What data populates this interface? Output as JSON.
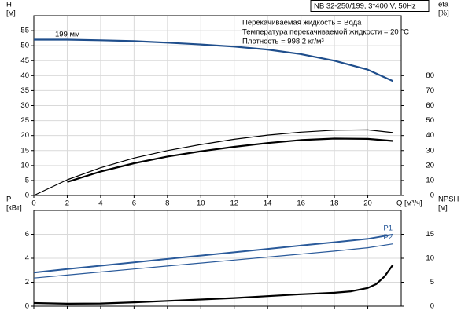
{
  "chart_data": [
    {
      "type": "line",
      "title": "NB 32-250/199, 3*400 V, 50Hz",
      "annotations": [
        "Перекачиваемая жидкость = Вода",
        "Температура перекачиваемой жидкости = 20 °C",
        "Плотность = 998.2 кг/м³",
        "199 мм"
      ],
      "ylabel": "H",
      "yunit": "[м]",
      "y2label": "eta",
      "y2unit": "[%]",
      "xlabel": "Q [м³/ч]",
      "xlim": [
        0,
        22
      ],
      "xticks": [
        0,
        2,
        4,
        6,
        8,
        10,
        12,
        14,
        16,
        18,
        20
      ],
      "xtick_labels": true,
      "ylim": [
        0,
        60
      ],
      "yticks": [
        0,
        5,
        10,
        15,
        20,
        25,
        30,
        35,
        40,
        45,
        50,
        55
      ],
      "y2lim": [
        0,
        120
      ],
      "y2ticks": [
        0,
        10,
        20,
        30,
        40,
        50,
        60,
        70,
        80
      ],
      "grid": true,
      "series": [
        {
          "color": "#1f4e8c",
          "width": 2.2,
          "axis": "y",
          "x": [
            0,
            2,
            4,
            6,
            8,
            10,
            12,
            14,
            16,
            18,
            20,
            21.5
          ],
          "values": [
            52,
            52,
            51.8,
            51.5,
            51,
            50.4,
            49.7,
            48.7,
            47.2,
            45,
            42,
            38.2
          ]
        },
        {
          "color": "#000000",
          "width": 1.2,
          "axis": "y2",
          "x": [
            0,
            2,
            4,
            6,
            8,
            10,
            12,
            14,
            16,
            18,
            20,
            21.5
          ],
          "values": [
            0,
            10.5,
            18.5,
            25,
            30,
            34,
            37.5,
            40.3,
            42.3,
            43.6,
            43.8,
            42
          ]
        },
        {
          "color": "#000000",
          "width": 2.2,
          "axis": "y2",
          "x": [
            2,
            4,
            6,
            8,
            10,
            12,
            14,
            16,
            18,
            20,
            21.5
          ],
          "values": [
            9,
            16,
            21.5,
            26,
            29.5,
            32.5,
            35,
            37,
            38,
            37.8,
            36.4
          ]
        }
      ]
    },
    {
      "type": "line",
      "ylabel": "P",
      "yunit": "[кВт]",
      "y2label": "NPSH",
      "y2unit": "[м]",
      "xlim": [
        0,
        22
      ],
      "xticks": [
        0,
        2,
        4,
        6,
        8,
        10,
        12,
        14,
        16,
        18,
        20
      ],
      "xtick_labels": false,
      "ylim": [
        0,
        8
      ],
      "yticks": [
        0,
        2,
        4,
        6
      ],
      "y2lim": [
        0,
        20
      ],
      "y2ticks": [
        0,
        5,
        10,
        15
      ],
      "grid": true,
      "series": [
        {
          "name": "P1",
          "color": "#2a5a9a",
          "width": 2,
          "axis": "y",
          "x": [
            0,
            2,
            4,
            6,
            8,
            10,
            12,
            14,
            16,
            18,
            20,
            21.5
          ],
          "values": [
            2.8,
            3.1,
            3.38,
            3.66,
            3.94,
            4.22,
            4.5,
            4.78,
            5.06,
            5.34,
            5.62,
            5.98
          ]
        },
        {
          "name": "P2",
          "color": "#2a5a9a",
          "width": 1.2,
          "axis": "y",
          "x": [
            0,
            2,
            4,
            6,
            8,
            10,
            12,
            14,
            16,
            18,
            20,
            21.5
          ],
          "values": [
            2.35,
            2.6,
            2.85,
            3.1,
            3.35,
            3.6,
            3.85,
            4.1,
            4.35,
            4.6,
            4.88,
            5.2
          ]
        },
        {
          "color": "#000000",
          "width": 2.2,
          "axis": "y2",
          "x": [
            0,
            2,
            4,
            6,
            8,
            10,
            12,
            14,
            16,
            18,
            19,
            20,
            20.5,
            21,
            21.5
          ],
          "values": [
            0.65,
            0.5,
            0.55,
            0.8,
            1.1,
            1.4,
            1.7,
            2.1,
            2.5,
            2.8,
            3.1,
            3.8,
            4.6,
            6.2,
            8.6
          ]
        }
      ]
    }
  ]
}
